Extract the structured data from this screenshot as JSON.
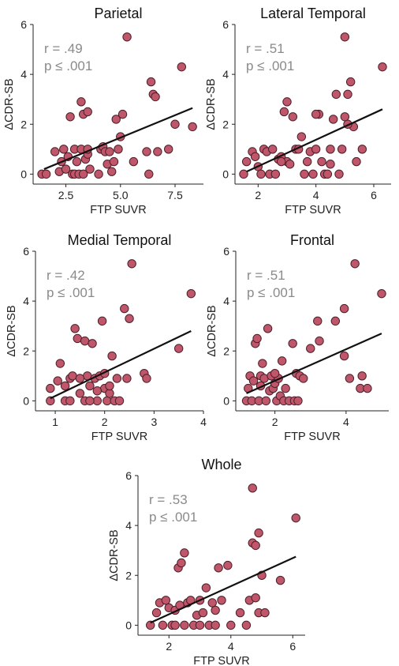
{
  "colors": {
    "point_fill": "#c0566a",
    "point_stroke": "#4a1f2a",
    "fit_line": "#111111",
    "stat_text": "#8a8a8a"
  },
  "chart_data": [
    {
      "type": "scatter",
      "title": "Parietal",
      "xlabel": "FTP SUVR",
      "ylabel": "ΔCDR-SB",
      "stat_r": "r = .49",
      "stat_p": "p ≤ .001",
      "xlim": [
        1,
        8.8
      ],
      "ylim": [
        -0.4,
        6
      ],
      "xticks": [
        2.5,
        5.0,
        7.5
      ],
      "xtick_labels": [
        "2.5",
        "5.0",
        "7.5"
      ],
      "yticks": [
        0,
        2,
        4,
        6
      ],
      "ytick_labels": [
        "0",
        "2",
        "4",
        "6"
      ],
      "fit": {
        "x": [
          1.5,
          8.3
        ],
        "y": [
          0.2,
          2.65
        ]
      },
      "points": [
        {
          "x": 1.4,
          "y": 0
        },
        {
          "x": 1.6,
          "y": 0
        },
        {
          "x": 2.0,
          "y": 0.9
        },
        {
          "x": 2.2,
          "y": 0.1
        },
        {
          "x": 2.3,
          "y": 0.5
        },
        {
          "x": 2.4,
          "y": 1.0
        },
        {
          "x": 2.5,
          "y": 0.2
        },
        {
          "x": 2.6,
          "y": 0.7
        },
        {
          "x": 2.7,
          "y": 2.3
        },
        {
          "x": 2.8,
          "y": 0
        },
        {
          "x": 2.9,
          "y": 0
        },
        {
          "x": 2.9,
          "y": 1.0
        },
        {
          "x": 3.0,
          "y": 0.5
        },
        {
          "x": 3.1,
          "y": 0
        },
        {
          "x": 3.2,
          "y": 1.0
        },
        {
          "x": 3.3,
          "y": 0
        },
        {
          "x": 3.3,
          "y": 2.4
        },
        {
          "x": 3.4,
          "y": 0.6
        },
        {
          "x": 3.5,
          "y": 0.8
        },
        {
          "x": 3.5,
          "y": 1.0
        },
        {
          "x": 3.6,
          "y": 0.2
        },
        {
          "x": 3.2,
          "y": 2.9
        },
        {
          "x": 3.5,
          "y": 2.5
        },
        {
          "x": 4.0,
          "y": 0
        },
        {
          "x": 4.1,
          "y": 1.0
        },
        {
          "x": 4.2,
          "y": 1.1
        },
        {
          "x": 4.3,
          "y": 0.9
        },
        {
          "x": 4.4,
          "y": 0.4
        },
        {
          "x": 4.5,
          "y": 0.9
        },
        {
          "x": 4.6,
          "y": 0.1
        },
        {
          "x": 4.7,
          "y": 0.5
        },
        {
          "x": 4.8,
          "y": 2.2
        },
        {
          "x": 4.9,
          "y": 1.0
        },
        {
          "x": 5.0,
          "y": 1.5
        },
        {
          "x": 5.1,
          "y": 2.4
        },
        {
          "x": 5.3,
          "y": 5.5
        },
        {
          "x": 5.6,
          "y": 0.5
        },
        {
          "x": 6.2,
          "y": 0.9
        },
        {
          "x": 6.3,
          "y": 0
        },
        {
          "x": 6.4,
          "y": 3.7
        },
        {
          "x": 6.5,
          "y": 3.2
        },
        {
          "x": 6.6,
          "y": 3.1
        },
        {
          "x": 6.7,
          "y": 0.9
        },
        {
          "x": 7.2,
          "y": 1.0
        },
        {
          "x": 7.5,
          "y": 2.0
        },
        {
          "x": 7.8,
          "y": 4.3
        },
        {
          "x": 8.3,
          "y": 1.9
        }
      ]
    },
    {
      "type": "scatter",
      "title": "Lateral Temporal",
      "xlabel": "FTP SUVR",
      "ylabel": "ΔCDR-SB",
      "stat_r": "r = .51",
      "stat_p": "p ≤ .001",
      "xlim": [
        1.2,
        6.6
      ],
      "ylim": [
        -0.4,
        6
      ],
      "xticks": [
        2,
        4,
        6
      ],
      "xtick_labels": [
        "2",
        "4",
        "6"
      ],
      "yticks": [
        0,
        2,
        4,
        6
      ],
      "ytick_labels": [
        "0",
        "2",
        "4",
        "6"
      ],
      "fit": {
        "x": [
          1.6,
          6.3
        ],
        "y": [
          0.1,
          2.6
        ]
      },
      "points": [
        {
          "x": 1.5,
          "y": 0
        },
        {
          "x": 1.6,
          "y": 0.5
        },
        {
          "x": 1.8,
          "y": 0.9
        },
        {
          "x": 1.9,
          "y": 0.7
        },
        {
          "x": 2.0,
          "y": 0.3
        },
        {
          "x": 2.1,
          "y": 0
        },
        {
          "x": 2.2,
          "y": 1.0
        },
        {
          "x": 2.3,
          "y": 0.9
        },
        {
          "x": 2.4,
          "y": 0
        },
        {
          "x": 2.5,
          "y": 1.0
        },
        {
          "x": 2.6,
          "y": 0
        },
        {
          "x": 2.7,
          "y": 0.6
        },
        {
          "x": 2.8,
          "y": 0.7
        },
        {
          "x": 2.9,
          "y": 2.5
        },
        {
          "x": 3.0,
          "y": 2.9
        },
        {
          "x": 3.0,
          "y": 0.5
        },
        {
          "x": 3.1,
          "y": 0.4
        },
        {
          "x": 3.2,
          "y": 2.3
        },
        {
          "x": 3.3,
          "y": 1.0
        },
        {
          "x": 3.4,
          "y": 1.0
        },
        {
          "x": 3.5,
          "y": 1.5
        },
        {
          "x": 3.6,
          "y": 0
        },
        {
          "x": 3.8,
          "y": 0.9
        },
        {
          "x": 3.9,
          "y": 0
        },
        {
          "x": 4.0,
          "y": 1.0
        },
        {
          "x": 4.1,
          "y": 2.4
        },
        {
          "x": 4.2,
          "y": 0.5
        },
        {
          "x": 4.3,
          "y": 0
        },
        {
          "x": 4.4,
          "y": 0
        },
        {
          "x": 4.5,
          "y": 1.0
        },
        {
          "x": 4.6,
          "y": 2.2
        },
        {
          "x": 4.7,
          "y": 3.2
        },
        {
          "x": 4.8,
          "y": 0
        },
        {
          "x": 4.9,
          "y": 1.0
        },
        {
          "x": 5.0,
          "y": 5.5
        },
        {
          "x": 5.1,
          "y": 3.2
        },
        {
          "x": 5.2,
          "y": 3.7
        },
        {
          "x": 5.3,
          "y": 1.9
        },
        {
          "x": 5.4,
          "y": 0.5
        },
        {
          "x": 5.1,
          "y": 2.0
        },
        {
          "x": 5.6,
          "y": 1.0
        },
        {
          "x": 6.3,
          "y": 4.3
        },
        {
          "x": 4.0,
          "y": 2.4
        },
        {
          "x": 5.0,
          "y": 2.3
        },
        {
          "x": 2.8,
          "y": 0.5
        },
        {
          "x": 3.7,
          "y": 0.5
        },
        {
          "x": 4.5,
          "y": 0.4
        }
      ]
    },
    {
      "type": "scatter",
      "title": "Medial Temporal",
      "xlabel": "FTP SUVR",
      "ylabel": "ΔCDR-SB",
      "stat_r": "r = .42",
      "stat_p": "p ≤ .001",
      "xlim": [
        0.6,
        4.0
      ],
      "ylim": [
        -0.4,
        6
      ],
      "xticks": [
        1,
        2,
        3,
        4
      ],
      "xtick_labels": [
        "1",
        "2",
        "3",
        "4"
      ],
      "yticks": [
        0,
        2,
        4,
        6
      ],
      "ytick_labels": [
        "0",
        "2",
        "4",
        "6"
      ],
      "fit": {
        "x": [
          0.9,
          3.75
        ],
        "y": [
          0.1,
          2.8
        ]
      },
      "points": [
        {
          "x": 0.9,
          "y": 0.5
        },
        {
          "x": 0.9,
          "y": 0
        },
        {
          "x": 1.05,
          "y": 0.8
        },
        {
          "x": 1.1,
          "y": 1.5
        },
        {
          "x": 1.2,
          "y": 0
        },
        {
          "x": 1.2,
          "y": 0.6
        },
        {
          "x": 1.3,
          "y": 0.9
        },
        {
          "x": 1.3,
          "y": 0
        },
        {
          "x": 1.35,
          "y": 1.0
        },
        {
          "x": 1.4,
          "y": 2.9
        },
        {
          "x": 1.45,
          "y": 2.5
        },
        {
          "x": 1.5,
          "y": 0.3
        },
        {
          "x": 1.6,
          "y": 0
        },
        {
          "x": 1.6,
          "y": 2.4
        },
        {
          "x": 1.65,
          "y": 1.0
        },
        {
          "x": 1.7,
          "y": 0.6
        },
        {
          "x": 1.75,
          "y": 2.3
        },
        {
          "x": 1.8,
          "y": 0.9
        },
        {
          "x": 1.85,
          "y": 0
        },
        {
          "x": 1.9,
          "y": 1.0
        },
        {
          "x": 1.95,
          "y": 3.2
        },
        {
          "x": 2.0,
          "y": 0.5
        },
        {
          "x": 2.0,
          "y": 1.1
        },
        {
          "x": 2.05,
          "y": 0
        },
        {
          "x": 2.1,
          "y": 0.3
        },
        {
          "x": 2.15,
          "y": 1.8
        },
        {
          "x": 2.2,
          "y": 0
        },
        {
          "x": 2.25,
          "y": 0.9
        },
        {
          "x": 2.4,
          "y": 3.7
        },
        {
          "x": 2.45,
          "y": 0.9
        },
        {
          "x": 2.5,
          "y": 3.3
        },
        {
          "x": 2.55,
          "y": 5.5
        },
        {
          "x": 2.8,
          "y": 1.1
        },
        {
          "x": 2.85,
          "y": 0.9
        },
        {
          "x": 3.5,
          "y": 2.1
        },
        {
          "x": 3.75,
          "y": 4.3
        },
        {
          "x": 1.5,
          "y": 0.9
        },
        {
          "x": 1.85,
          "y": 0.4
        },
        {
          "x": 2.1,
          "y": 0.6
        },
        {
          "x": 1.7,
          "y": 0
        },
        {
          "x": 2.3,
          "y": 0
        }
      ]
    },
    {
      "type": "scatter",
      "title": "Frontal",
      "xlabel": "FTP SUVR",
      "ylabel": "ΔCDR-SB",
      "stat_r": "r = .51",
      "stat_p": "p ≤ .001",
      "xlim": [
        0.9,
        5.2
      ],
      "ylim": [
        -0.4,
        6
      ],
      "xticks": [
        2,
        4
      ],
      "xtick_labels": [
        "2",
        "4"
      ],
      "yticks": [
        0,
        2,
        4,
        6
      ],
      "ytick_labels": [
        "0",
        "2",
        "4",
        "6"
      ],
      "fit": {
        "x": [
          1.2,
          5.0
        ],
        "y": [
          0.3,
          2.7
        ]
      },
      "points": [
        {
          "x": 1.2,
          "y": 0
        },
        {
          "x": 1.25,
          "y": 0.5
        },
        {
          "x": 1.3,
          "y": 1.0
        },
        {
          "x": 1.35,
          "y": 0
        },
        {
          "x": 1.4,
          "y": 0.8
        },
        {
          "x": 1.45,
          "y": 2.3
        },
        {
          "x": 1.5,
          "y": 2.5
        },
        {
          "x": 1.55,
          "y": 0
        },
        {
          "x": 1.6,
          "y": 1.0
        },
        {
          "x": 1.65,
          "y": 1.5
        },
        {
          "x": 1.7,
          "y": 0.9
        },
        {
          "x": 1.75,
          "y": 0
        },
        {
          "x": 1.8,
          "y": 2.9
        },
        {
          "x": 1.85,
          "y": 0.4
        },
        {
          "x": 1.9,
          "y": 1.0
        },
        {
          "x": 1.95,
          "y": 0.5
        },
        {
          "x": 2.0,
          "y": 0.7
        },
        {
          "x": 2.05,
          "y": 0
        },
        {
          "x": 2.1,
          "y": 0.9
        },
        {
          "x": 2.15,
          "y": 0.2
        },
        {
          "x": 2.2,
          "y": 1.6
        },
        {
          "x": 2.25,
          "y": 0
        },
        {
          "x": 2.3,
          "y": 0.5
        },
        {
          "x": 2.4,
          "y": 0
        },
        {
          "x": 2.5,
          "y": 2.3
        },
        {
          "x": 2.55,
          "y": 0
        },
        {
          "x": 2.6,
          "y": 1.1
        },
        {
          "x": 2.65,
          "y": 0
        },
        {
          "x": 2.7,
          "y": 1.0
        },
        {
          "x": 3.0,
          "y": 2.1
        },
        {
          "x": 3.2,
          "y": 3.2
        },
        {
          "x": 3.25,
          "y": 2.4
        },
        {
          "x": 3.7,
          "y": 3.2
        },
        {
          "x": 3.95,
          "y": 3.7
        },
        {
          "x": 3.95,
          "y": 1.8
        },
        {
          "x": 4.1,
          "y": 0.9
        },
        {
          "x": 4.25,
          "y": 5.5
        },
        {
          "x": 4.4,
          "y": 0.5
        },
        {
          "x": 4.45,
          "y": 1.0
        },
        {
          "x": 4.6,
          "y": 0.5
        },
        {
          "x": 5.0,
          "y": 4.3
        },
        {
          "x": 1.6,
          "y": 0.6
        },
        {
          "x": 2.0,
          "y": 1.1
        },
        {
          "x": 2.8,
          "y": 0.9
        }
      ]
    },
    {
      "type": "scatter",
      "title": "Whole",
      "xlabel": "FTP SUVR",
      "ylabel": "ΔCDR-SB",
      "stat_r": "r = .53",
      "stat_p": "p ≤ .001",
      "xlim": [
        1.0,
        6.4
      ],
      "ylim": [
        -0.4,
        6
      ],
      "xticks": [
        2,
        4,
        6
      ],
      "xtick_labels": [
        "2",
        "4",
        "6"
      ],
      "yticks": [
        0,
        2,
        4,
        6
      ],
      "ytick_labels": [
        "0",
        "2",
        "4",
        "6"
      ],
      "fit": {
        "x": [
          1.4,
          6.1
        ],
        "y": [
          0.1,
          2.75
        ]
      },
      "points": [
        {
          "x": 1.4,
          "y": 0
        },
        {
          "x": 1.6,
          "y": 0.5
        },
        {
          "x": 1.7,
          "y": 0.9
        },
        {
          "x": 1.8,
          "y": 0
        },
        {
          "x": 1.9,
          "y": 1.0
        },
        {
          "x": 2.0,
          "y": 0.7
        },
        {
          "x": 2.1,
          "y": 0
        },
        {
          "x": 2.2,
          "y": 0.6
        },
        {
          "x": 2.3,
          "y": 2.3
        },
        {
          "x": 2.35,
          "y": 0.8
        },
        {
          "x": 2.4,
          "y": 2.5
        },
        {
          "x": 2.5,
          "y": 0
        },
        {
          "x": 2.5,
          "y": 2.9
        },
        {
          "x": 2.6,
          "y": 0.9
        },
        {
          "x": 2.7,
          "y": 1.0
        },
        {
          "x": 2.8,
          "y": 0
        },
        {
          "x": 2.9,
          "y": 0.4
        },
        {
          "x": 3.0,
          "y": 1.0
        },
        {
          "x": 3.1,
          "y": 0.5
        },
        {
          "x": 3.2,
          "y": 1.5
        },
        {
          "x": 3.3,
          "y": 0
        },
        {
          "x": 3.4,
          "y": 0.9
        },
        {
          "x": 3.5,
          "y": 0.6
        },
        {
          "x": 3.6,
          "y": 2.3
        },
        {
          "x": 3.7,
          "y": 1.0
        },
        {
          "x": 3.9,
          "y": 2.4
        },
        {
          "x": 4.0,
          "y": 0
        },
        {
          "x": 4.3,
          "y": 0.5
        },
        {
          "x": 4.5,
          "y": 0
        },
        {
          "x": 4.6,
          "y": 1.0
        },
        {
          "x": 4.7,
          "y": 5.5
        },
        {
          "x": 4.7,
          "y": 3.3
        },
        {
          "x": 4.8,
          "y": 3.2
        },
        {
          "x": 4.8,
          "y": 1.1
        },
        {
          "x": 4.9,
          "y": 3.7
        },
        {
          "x": 4.9,
          "y": 0.5
        },
        {
          "x": 5.0,
          "y": 2.0
        },
        {
          "x": 5.1,
          "y": 0.5
        },
        {
          "x": 5.6,
          "y": 1.8
        },
        {
          "x": 6.1,
          "y": 4.3
        },
        {
          "x": 3.0,
          "y": 0
        },
        {
          "x": 2.2,
          "y": 0
        },
        {
          "x": 3.5,
          "y": 0
        }
      ]
    }
  ]
}
